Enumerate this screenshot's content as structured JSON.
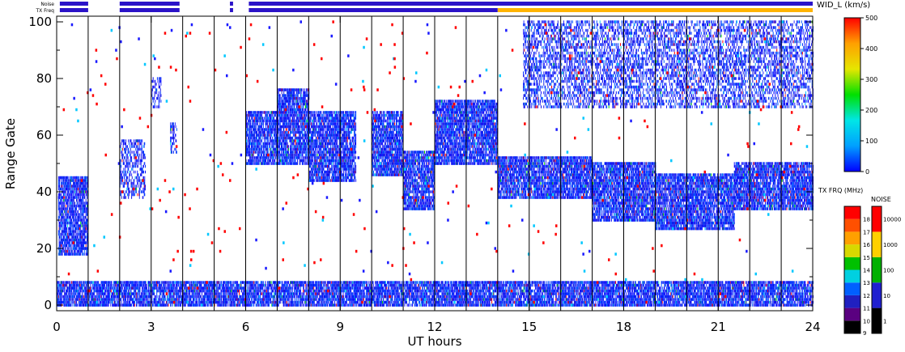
{
  "chart_data": {
    "type": "scatter",
    "xlabel": "UT hours",
    "ylabel": "Range Gate",
    "xlim": [
      0,
      24
    ],
    "ylim": [
      -2,
      102
    ],
    "x_ticks": [
      "0",
      "3",
      "6",
      "9",
      "12",
      "15",
      "18",
      "21",
      "24"
    ],
    "x_tick_values": [
      0,
      3,
      6,
      9,
      12,
      15,
      18,
      21,
      24
    ],
    "y_ticks": [
      "0",
      "20",
      "40",
      "60",
      "80",
      "100"
    ],
    "y_tick_values": [
      0,
      20,
      40,
      60,
      80,
      100
    ],
    "scan_boundaries_ut": [
      1,
      2,
      3,
      4,
      5,
      6,
      7,
      8,
      9,
      10,
      11,
      12,
      13,
      14,
      15,
      16,
      17,
      18,
      19,
      20,
      21,
      22,
      23
    ],
    "status_bars": {
      "noise_label": "Noise",
      "txfreq_label": "TX Freq",
      "segments_ut": [
        [
          0.1,
          1.0
        ],
        [
          2.0,
          3.9
        ],
        [
          5.5,
          5.6
        ],
        [
          6.1,
          24.0
        ]
      ],
      "freq_change_ut": 14.0,
      "bar_color": "#2b13c8",
      "alt_color": "#ffb400"
    },
    "echo_regions": [
      {
        "x": [
          0.05,
          1.0
        ],
        "gates": [
          18,
          45
        ],
        "density": "high",
        "color": "blue"
      },
      {
        "x": [
          2.0,
          2.8
        ],
        "gates": [
          38,
          58
        ],
        "density": "medium",
        "color": "blue"
      },
      {
        "x": [
          3.0,
          3.3
        ],
        "gates": [
          70,
          80
        ],
        "density": "medium",
        "color": "blue"
      },
      {
        "x": [
          3.6,
          3.8
        ],
        "gates": [
          54,
          64
        ],
        "density": "medium",
        "color": "blue"
      },
      {
        "x": [
          6.0,
          7.0
        ],
        "gates": [
          50,
          68
        ],
        "density": "high",
        "color": "blue"
      },
      {
        "x": [
          7.0,
          8.0
        ],
        "gates": [
          50,
          76
        ],
        "density": "high",
        "color": "blue"
      },
      {
        "x": [
          8.0,
          9.5
        ],
        "gates": [
          44,
          68
        ],
        "density": "high",
        "color": "blue"
      },
      {
        "x": [
          10.0,
          11.0
        ],
        "gates": [
          46,
          68
        ],
        "density": "high",
        "color": "blue"
      },
      {
        "x": [
          11.0,
          12.0
        ],
        "gates": [
          34,
          54
        ],
        "density": "high",
        "color": "blue"
      },
      {
        "x": [
          12.0,
          14.0
        ],
        "gates": [
          50,
          72
        ],
        "density": "high",
        "color": "blue"
      },
      {
        "x": [
          14.0,
          17.0
        ],
        "gates": [
          38,
          52
        ],
        "density": "high",
        "color": "blue"
      },
      {
        "x": [
          17.0,
          19.0
        ],
        "gates": [
          30,
          50
        ],
        "density": "high",
        "color": "blue"
      },
      {
        "x": [
          19.0,
          21.5
        ],
        "gates": [
          27,
          46
        ],
        "density": "high",
        "color": "blue"
      },
      {
        "x": [
          21.5,
          24.0
        ],
        "gates": [
          34,
          50
        ],
        "density": "high",
        "color": "blue"
      },
      {
        "x": [
          14.8,
          24.0
        ],
        "gates": [
          70,
          100
        ],
        "density": "medium",
        "color": "blue"
      },
      {
        "x": [
          0.0,
          24.0
        ],
        "gates": [
          0,
          8
        ],
        "density": "high",
        "color": "blue"
      }
    ],
    "colorbars": [
      {
        "title": "WID_L (km/s)",
        "ticks": [
          "0",
          "100",
          "200",
          "300",
          "400",
          "500"
        ],
        "range": [
          0,
          500
        ],
        "stops": [
          "#0000ff",
          "#00a0ff",
          "#00e6e6",
          "#00e000",
          "#e6e600",
          "#ffa000",
          "#ff0000"
        ]
      },
      {
        "title": "TX FRQ (MHz)",
        "ticks": [
          "9",
          "10",
          "11",
          "12",
          "13",
          "14",
          "15",
          "16",
          "17",
          "18"
        ],
        "colors": [
          "#000000",
          "#5a0080",
          "#2020c0",
          "#0060ff",
          "#00d0e0",
          "#00c000",
          "#d8d800",
          "#ffa000",
          "#ff5000",
          "#ff0000"
        ]
      },
      {
        "title": "NOISE",
        "ticks": [
          "1",
          "10",
          "100",
          "1000",
          "10000"
        ],
        "colors": [
          "#000000",
          "#2020d0",
          "#00b000",
          "#ffd000",
          "#ff0000"
        ]
      }
    ]
  }
}
